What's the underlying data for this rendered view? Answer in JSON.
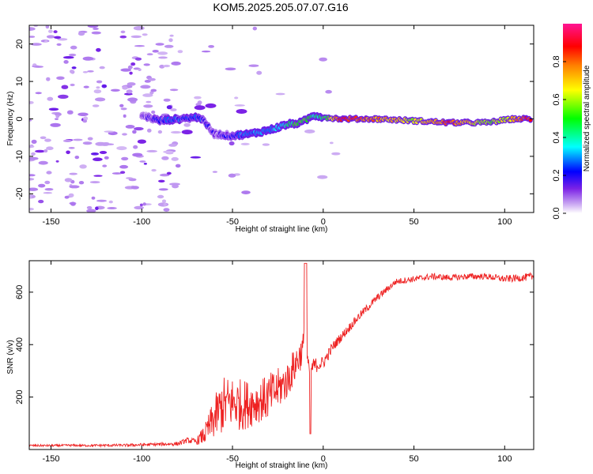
{
  "title": "KOM5.2025.205.07.07.G16",
  "chart_data": [
    {
      "type": "heatmap",
      "xlabel": "Height of straight line (km)",
      "ylabel": "Frequency (Hz)",
      "xlim": [
        -162,
        116
      ],
      "ylim": [
        -25,
        25
      ],
      "xticks": [
        -150,
        -100,
        -50,
        0,
        50,
        100
      ],
      "yticks": [
        -20,
        -10,
        0,
        10,
        20
      ],
      "colorbar": {
        "label": "Normalized spectral amplitude",
        "ticks": [
          0.0,
          0.2,
          0.4,
          0.6,
          0.8
        ],
        "tick_labels": [
          "0.0",
          "0.2",
          "0.4",
          "0.6",
          "0.8"
        ],
        "range": [
          0,
          1
        ],
        "colormap": [
          "#ffffff",
          "#c9a6f2",
          "#7b22e6",
          "#0000ff",
          "#00ffff",
          "#00ff00",
          "#ffff00",
          "#ff7f00",
          "#ff0000",
          "#ff1493"
        ]
      },
      "ridge": [
        {
          "x": -100,
          "y": 1,
          "v": 0.12
        },
        {
          "x": -90,
          "y": -0.5,
          "v": 0.22
        },
        {
          "x": -80,
          "y": 0,
          "v": 0.25
        },
        {
          "x": -68,
          "y": 0.5,
          "v": 0.25
        },
        {
          "x": -60,
          "y": -4,
          "v": 0.12
        },
        {
          "x": -50,
          "y": -4.5,
          "v": 0.2
        },
        {
          "x": -40,
          "y": -4,
          "v": 0.28
        },
        {
          "x": -30,
          "y": -3,
          "v": 0.32
        },
        {
          "x": -20,
          "y": -1.5,
          "v": 0.4
        },
        {
          "x": -12,
          "y": -1,
          "v": 0.55
        },
        {
          "x": -5,
          "y": 1,
          "v": 0.4
        },
        {
          "x": 0,
          "y": 0.5,
          "v": 0.45
        },
        {
          "x": 10,
          "y": 0,
          "v": 0.85
        },
        {
          "x": 30,
          "y": 0,
          "v": 0.75
        },
        {
          "x": 50,
          "y": -0.5,
          "v": 0.6
        },
        {
          "x": 70,
          "y": -1,
          "v": 0.85
        },
        {
          "x": 90,
          "y": -1,
          "v": 0.55
        },
        {
          "x": 105,
          "y": 0,
          "v": 0.7
        },
        {
          "x": 115,
          "y": 0,
          "v": 0.9
        }
      ]
    },
    {
      "type": "line",
      "xlabel": "Height of straight line (km)",
      "ylabel": "SNR (v/v)",
      "xlim": [
        -162,
        116
      ],
      "ylim": [
        0,
        720
      ],
      "xticks": [
        -150,
        -100,
        -50,
        0,
        50,
        100
      ],
      "yticks": [
        200,
        400,
        600
      ],
      "color": "#ee2222",
      "series": [
        {
          "x": [
            -162,
            -150,
            -140,
            -130,
            -120,
            -110,
            -100,
            -90,
            -80,
            -75,
            -70,
            -65,
            -60,
            -55,
            -50,
            -45,
            -40,
            -35,
            -30,
            -25,
            -20,
            -15,
            -12,
            -10,
            -8,
            -5,
            0,
            5,
            10,
            20,
            30,
            40,
            50,
            60,
            70,
            80,
            90,
            100,
            110,
            116
          ],
          "y": [
            15,
            15,
            16,
            15,
            16,
            16,
            18,
            20,
            22,
            35,
            30,
            60,
            120,
            170,
            180,
            170,
            175,
            185,
            200,
            230,
            260,
            330,
            370,
            420,
            300,
            320,
            330,
            390,
            430,
            510,
            580,
            640,
            650,
            660,
            655,
            660,
            660,
            650,
            655,
            660
          ],
          "noise": [
            4,
            4,
            4,
            4,
            5,
            5,
            6,
            6,
            8,
            10,
            12,
            40,
            80,
            110,
            100,
            100,
            90,
            80,
            90,
            80,
            70,
            70,
            60,
            60,
            40,
            30,
            25,
            20,
            18,
            16,
            14,
            12,
            12,
            12,
            12,
            12,
            12,
            14,
            14,
            16
          ]
        }
      ]
    }
  ]
}
